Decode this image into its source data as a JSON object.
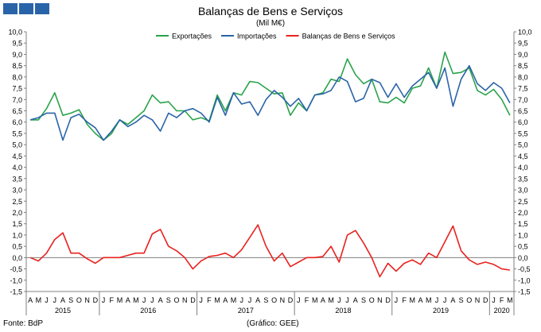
{
  "header": {
    "title": "Balanças de Bens e Serviços",
    "unit": "(Mil M€)"
  },
  "footer": {
    "source": "Fonte: BdP",
    "credit": "(Gráfico: GEE)"
  },
  "colors": {
    "exports": "#2aa34a",
    "imports": "#2a64a8",
    "balance": "#e8221f",
    "grid": "#c8c8c8",
    "logo": "#2a64a8"
  },
  "chart_data": {
    "type": "line",
    "title": "Balanças de Bens e Serviços",
    "ylabel": "(Mil M€)",
    "ylim": [
      -1.5,
      10.0
    ],
    "yticks": [
      "10,0",
      "9,5",
      "9,0",
      "8,5",
      "8,0",
      "7,5",
      "7,0",
      "6,5",
      "6,0",
      "5,5",
      "5,0",
      "4,5",
      "4,0",
      "3,5",
      "3,0",
      "2,5",
      "2,0",
      "1,5",
      "1,0",
      "0,5",
      "0,0",
      "-0,5",
      "-1,0",
      "-1,5"
    ],
    "legend_position": "top",
    "grid": false,
    "month_labels": [
      "A",
      "M",
      "J",
      "J",
      "A",
      "S",
      "O",
      "N",
      "D",
      "J",
      "F",
      "M",
      "A",
      "M",
      "J",
      "J",
      "A",
      "S",
      "O",
      "N",
      "D",
      "J",
      "F",
      "M",
      "A",
      "M",
      "J",
      "J",
      "A",
      "S",
      "O",
      "N",
      "D",
      "J",
      "F",
      "M",
      "A",
      "M",
      "J",
      "J",
      "A",
      "S",
      "O",
      "N",
      "D",
      "J",
      "F",
      "M",
      "A",
      "M",
      "J",
      "J",
      "A",
      "S",
      "O",
      "N",
      "D",
      "J",
      "F",
      "M"
    ],
    "year_labels": [
      {
        "label": "2015",
        "start": 0,
        "end": 8
      },
      {
        "label": "2016",
        "start": 9,
        "end": 20
      },
      {
        "label": "2017",
        "start": 21,
        "end": 32
      },
      {
        "label": "2018",
        "start": 33,
        "end": 44
      },
      {
        "label": "2019",
        "start": 45,
        "end": 56
      },
      {
        "label": "2020",
        "start": 57,
        "end": 59
      }
    ],
    "series": [
      {
        "name": "Exportações",
        "color": "#2aa34a",
        "values": [
          6.1,
          6.1,
          6.6,
          7.3,
          6.3,
          6.4,
          6.55,
          5.9,
          5.5,
          5.2,
          5.5,
          6.1,
          5.9,
          6.2,
          6.5,
          7.2,
          6.85,
          6.9,
          6.5,
          6.5,
          6.1,
          6.2,
          6.05,
          7.2,
          6.5,
          7.3,
          7.2,
          7.8,
          7.75,
          7.5,
          7.25,
          7.3,
          6.3,
          6.85,
          6.5,
          7.2,
          7.3,
          7.9,
          7.8,
          8.8,
          8.1,
          7.7,
          7.9,
          6.9,
          6.85,
          7.1,
          6.85,
          7.5,
          7.6,
          8.4,
          7.5,
          9.1,
          8.15,
          8.2,
          8.4,
          7.4,
          7.2,
          7.45,
          7.0,
          6.3
        ]
      },
      {
        "name": "Importações",
        "color": "#2a64a8",
        "values": [
          6.1,
          6.2,
          6.4,
          6.4,
          5.2,
          6.2,
          6.35,
          6.0,
          5.75,
          5.2,
          5.6,
          6.1,
          5.8,
          6.0,
          6.3,
          6.1,
          5.6,
          6.4,
          6.2,
          6.5,
          6.6,
          6.4,
          6.0,
          7.1,
          6.3,
          7.3,
          6.8,
          6.9,
          6.3,
          7.0,
          7.4,
          7.1,
          6.7,
          7.05,
          6.5,
          7.2,
          7.25,
          7.4,
          8.0,
          7.8,
          6.9,
          7.05,
          7.9,
          7.75,
          7.1,
          7.7,
          7.1,
          7.6,
          7.9,
          8.2,
          7.5,
          8.4,
          6.7,
          7.9,
          8.5,
          7.7,
          7.4,
          7.75,
          7.5,
          6.85
        ]
      },
      {
        "name": "Balanças de Bens e Serviços",
        "color": "#e8221f",
        "values": [
          0.0,
          -0.15,
          0.2,
          0.8,
          1.1,
          0.2,
          0.2,
          -0.05,
          -0.25,
          0.0,
          0.0,
          0.0,
          0.1,
          0.2,
          0.2,
          1.05,
          1.25,
          0.5,
          0.3,
          0.0,
          -0.5,
          -0.15,
          0.05,
          0.1,
          0.2,
          0.0,
          0.35,
          0.9,
          1.45,
          0.5,
          -0.15,
          0.2,
          -0.4,
          -0.2,
          0.0,
          0.0,
          0.05,
          0.5,
          -0.2,
          1.0,
          1.2,
          0.65,
          0.0,
          -0.85,
          -0.25,
          -0.6,
          -0.25,
          -0.1,
          -0.3,
          0.2,
          0.0,
          0.7,
          1.4,
          0.3,
          -0.1,
          -0.3,
          -0.2,
          -0.3,
          -0.5,
          -0.55
        ]
      }
    ]
  }
}
